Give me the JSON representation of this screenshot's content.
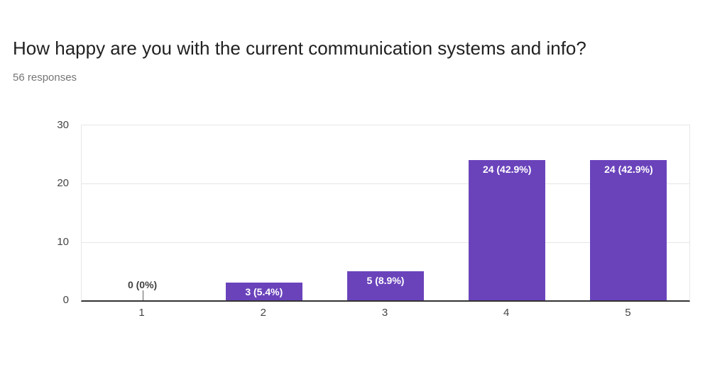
{
  "header": {
    "title": "How happy are you with the current communication systems and info?",
    "subtitle": "56 responses"
  },
  "chart_data": {
    "type": "bar",
    "title": "How happy are you with the current communication systems and info?",
    "subtitle": "56 responses",
    "categories": [
      "1",
      "2",
      "3",
      "4",
      "5"
    ],
    "values": [
      0,
      3,
      5,
      24,
      24
    ],
    "annotations": [
      "0 (0%)",
      "3 (5.4%)",
      "5 (8.9%)",
      "24 (42.9%)",
      "24 (42.9%)"
    ],
    "xlabel": "",
    "ylabel": "",
    "ylim": [
      0,
      30
    ],
    "y_ticks": [
      0,
      10,
      20,
      30
    ],
    "grid": true,
    "legend": "none",
    "colors": {
      "bar": "#6a43bb",
      "annotation_inside": "#ffffff",
      "annotation_outside": "#404040",
      "zero_stem": "#616161",
      "gridline": "#e6e6e6",
      "baseline": "#333333",
      "axis_text": "#444444"
    }
  }
}
